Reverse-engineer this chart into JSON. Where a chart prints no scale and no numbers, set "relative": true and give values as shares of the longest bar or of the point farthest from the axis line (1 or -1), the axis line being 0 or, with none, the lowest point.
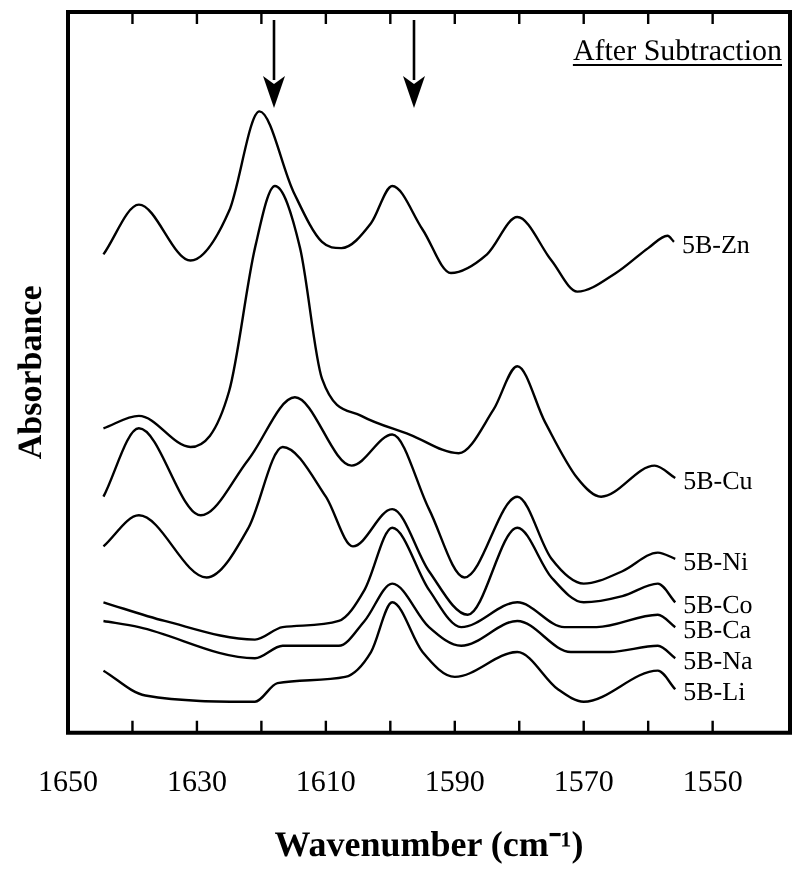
{
  "chart_data": {
    "type": "line",
    "relative": true,
    "xlabel": "Wavenumber (cm⁻¹)",
    "ylabel": "Absorbance",
    "annotations": [
      "After Subtraction"
    ],
    "legend": false,
    "xlim": [
      1650,
      1538
    ],
    "xticks": [
      1650,
      {
        "value": 1640,
        "label": null
      },
      1630,
      {
        "value": 1620,
        "label": null
      },
      1610,
      {
        "value": 1600,
        "label": null
      },
      1590,
      {
        "value": 1580,
        "label": null
      },
      1570,
      {
        "value": 1560,
        "label": null
      },
      1550
    ],
    "series": [
      {
        "name": "5B-Zn",
        "color": "#000000",
        "x": [
          1644.5,
          1639,
          1631,
          1625,
          1620.3,
          1615,
          1610.6,
          1607.6,
          1603,
          1599.7,
          1595,
          1590.6,
          1585,
          1580.3,
          1575,
          1571,
          1565,
          1560,
          1557,
          1556
        ],
        "values": [
          0.77,
          0.85,
          0.76,
          0.84,
          1.0,
          0.87,
          0.79,
          0.78,
          0.82,
          0.88,
          0.81,
          0.74,
          0.77,
          0.83,
          0.76,
          0.71,
          0.74,
          0.78,
          0.8,
          0.79
        ]
      },
      {
        "name": "5B-Cu",
        "color": "#000000",
        "x": [
          1644.5,
          1639,
          1631,
          1625,
          1621,
          1617.9,
          1614,
          1610.6,
          1604.5,
          1597,
          1589.4,
          1584,
          1580.3,
          1576,
          1571,
          1567.3,
          1559,
          1555.8
        ],
        "values": [
          0.49,
          0.51,
          0.46,
          0.55,
          0.78,
          0.88,
          0.78,
          0.57,
          0.51,
          0.48,
          0.45,
          0.52,
          0.59,
          0.5,
          0.41,
          0.38,
          0.43,
          0.41
        ]
      },
      {
        "name": "5B-Ni",
        "color": "#000000",
        "x": [
          1644.5,
          1639,
          1629.4,
          1622,
          1614.8,
          1606,
          1599.7,
          1594,
          1588.5,
          1580.3,
          1575,
          1570,
          1564,
          1558.5,
          1555.8
        ],
        "values": [
          0.38,
          0.49,
          0.35,
          0.44,
          0.54,
          0.43,
          0.48,
          0.36,
          0.25,
          0.38,
          0.28,
          0.24,
          0.26,
          0.29,
          0.28
        ]
      },
      {
        "name": "5B-Co",
        "color": "#000000",
        "x": [
          1644.5,
          1639,
          1628.5,
          1622,
          1616.7,
          1610,
          1605.8,
          1599.7,
          1594,
          1588,
          1580.3,
          1575,
          1570,
          1564,
          1558.5,
          1555.8
        ],
        "values": [
          0.3,
          0.35,
          0.25,
          0.33,
          0.46,
          0.38,
          0.3,
          0.36,
          0.26,
          0.19,
          0.33,
          0.25,
          0.21,
          0.22,
          0.24,
          0.21
        ]
      },
      {
        "name": "5B-Ca",
        "color": "#000000",
        "x": [
          1644.5,
          1635,
          1621,
          1616.7,
          1608,
          1604,
          1599.7,
          1594,
          1589,
          1580.3,
          1573,
          1568,
          1558.5,
          1555.8
        ],
        "values": [
          0.21,
          0.18,
          0.15,
          0.17,
          0.18,
          0.23,
          0.33,
          0.23,
          0.17,
          0.21,
          0.17,
          0.17,
          0.19,
          0.17
        ]
      },
      {
        "name": "5B-Na",
        "color": "#000000",
        "x": [
          1644.5,
          1639,
          1621,
          1616.7,
          1608,
          1604,
          1599.7,
          1594,
          1589,
          1580.3,
          1572,
          1566,
          1558.5,
          1555.8
        ],
        "values": [
          0.18,
          0.17,
          0.12,
          0.14,
          0.14,
          0.18,
          0.24,
          0.17,
          0.14,
          0.18,
          0.13,
          0.13,
          0.14,
          0.12
        ]
      },
      {
        "name": "5B-Li",
        "color": "#000000",
        "x": [
          1644.5,
          1638,
          1621,
          1617.5,
          1607,
          1603,
          1599.7,
          1595,
          1590,
          1580.3,
          1574,
          1570,
          1558.5,
          1555.8
        ],
        "values": [
          0.1,
          0.06,
          0.05,
          0.08,
          0.09,
          0.13,
          0.21,
          0.13,
          0.09,
          0.13,
          0.07,
          0.05,
          0.1,
          0.07
        ]
      }
    ]
  }
}
